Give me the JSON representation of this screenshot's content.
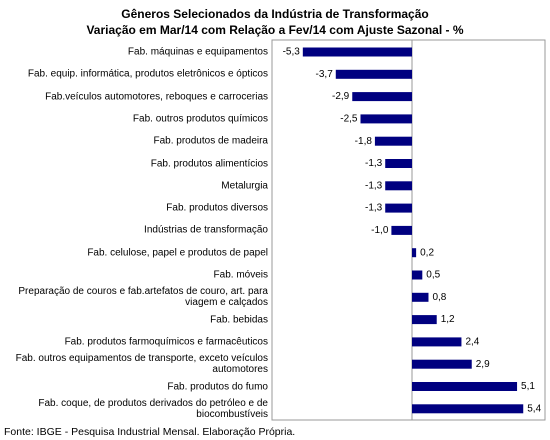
{
  "chart_data": {
    "type": "hbar",
    "title": "Gêneros Selecionados da Indústria de Transformação",
    "subtitle": "Variação em Mar/14 com Relação a Fev/14 com Ajuste Sazonal - %",
    "categories": [
      "Fab. máquinas e equipamentos",
      "Fab. equip. informática, produtos eletrônicos e ópticos",
      "Fab.veículos automotores, reboques e carrocerias",
      "Fab. outros produtos químicos",
      "Fab. produtos de madeira",
      "Fab. produtos alimentícios",
      "Metalurgia",
      "Fab. produtos diversos",
      "Indústrias de transformação",
      "Fab. celulose, papel e produtos de papel",
      "Fab. móveis",
      "Preparação de couros e fab.artefatos de couro, art. para viagem e calçados",
      "Fab. bebidas",
      "Fab. produtos farmoquímicos e farmacêuticos",
      "Fab. outros equipamentos de transporte, exceto veículos automotores",
      "Fab. produtos do fumo",
      "Fab. coque, de produtos derivados do petróleo e de biocombustíveis"
    ],
    "values": [
      -5.3,
      -3.7,
      -2.9,
      -2.5,
      -1.8,
      -1.3,
      -1.3,
      -1.3,
      -1.0,
      0.2,
      0.5,
      0.8,
      1.2,
      2.4,
      2.9,
      5.1,
      5.4
    ],
    "value_labels": [
      "-5,3",
      "-3,7",
      "-2,9",
      "-2,5",
      "-1,8",
      "-1,3",
      "-1,3",
      "-1,3",
      "-1,0",
      "0,2",
      "0,5",
      "0,8",
      "1,2",
      "2,4",
      "2,9",
      "5,1",
      "5,4"
    ],
    "color": "#000080",
    "source": "Fonte: IBGE - Pesquisa Industrial Mensal. Elaboração Própria."
  }
}
